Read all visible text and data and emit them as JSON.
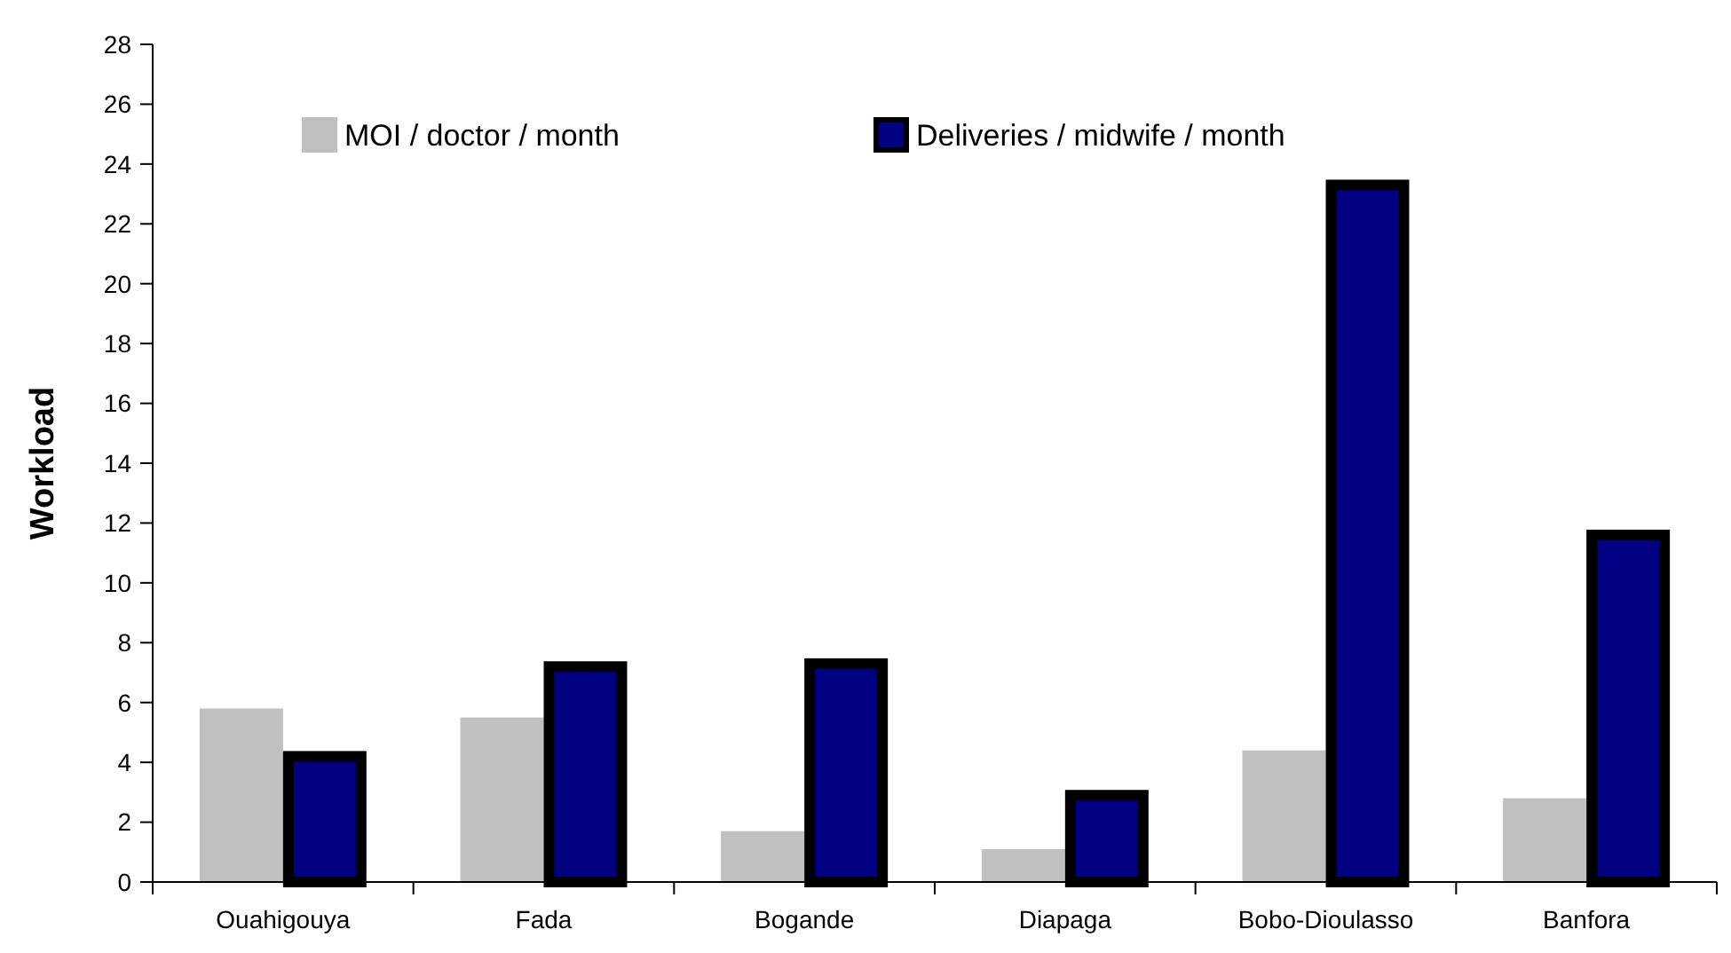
{
  "chart_data": {
    "type": "bar",
    "ylabel": "Workload",
    "categories": [
      "Ouahigouya",
      "Fada",
      "Bogande",
      "Diapaga",
      "Bobo-Dioulasso",
      "Banfora"
    ],
    "series": [
      {
        "name": "MOI / doctor / month",
        "color": "#c0c0c0",
        "values": [
          5.8,
          5.5,
          1.7,
          1.1,
          4.4,
          2.8
        ]
      },
      {
        "name": "Deliveries / midwife / month",
        "color": "#000080",
        "values": [
          4.2,
          7.2,
          7.3,
          2.9,
          23.3,
          11.6
        ]
      }
    ],
    "ylim": [
      0,
      28
    ],
    "yticks": [
      0,
      2,
      4,
      6,
      8,
      10,
      12,
      14,
      16,
      18,
      20,
      22,
      24,
      26,
      28
    ],
    "grid": false,
    "legend": "top"
  }
}
